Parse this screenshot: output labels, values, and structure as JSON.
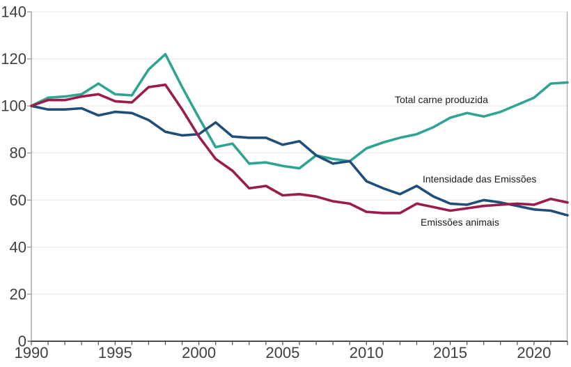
{
  "chart_data": {
    "type": "line",
    "title": "",
    "xlabel": "",
    "ylabel": "",
    "xlim": [
      1990,
      2022
    ],
    "ylim": [
      0,
      140
    ],
    "x": [
      1990,
      1991,
      1992,
      1993,
      1994,
      1995,
      1996,
      1997,
      1998,
      1999,
      2000,
      2001,
      2002,
      2003,
      2004,
      2005,
      2006,
      2007,
      2008,
      2009,
      2010,
      2011,
      2012,
      2013,
      2014,
      2015,
      2016,
      2017,
      2018,
      2019,
      2020,
      2021,
      2022
    ],
    "x_tick_labels": [
      "1990",
      "1995",
      "2000",
      "2005",
      "2010",
      "2015",
      "2020"
    ],
    "x_tick_years": [
      1990,
      1995,
      2000,
      2005,
      2010,
      2015,
      2020
    ],
    "y_ticks": [
      0,
      20,
      40,
      60,
      80,
      100,
      120,
      140
    ],
    "grid": "horizontal-light",
    "legend_position": "inline-annotations",
    "index_base": 100,
    "series": [
      {
        "name": "Total carne produzida",
        "color": "#2fa493",
        "values": [
          100,
          103.5,
          104,
          105,
          109.5,
          105,
          104.5,
          115.5,
          122,
          108,
          95,
          82.5,
          84,
          75.5,
          76,
          74.5,
          73.5,
          79,
          77.5,
          76.5,
          82,
          84.5,
          86.5,
          88,
          91,
          95,
          97,
          95.5,
          97.5,
          100.5,
          103.5,
          109.5,
          110
        ]
      },
      {
        "name": "Intensidade das Emissões",
        "color": "#1f4e79",
        "values": [
          100,
          98.5,
          98.5,
          99,
          96,
          97.5,
          97,
          94,
          89,
          87.5,
          88,
          93,
          87,
          86.5,
          86.5,
          83.5,
          85,
          79,
          75.5,
          76.5,
          68,
          65,
          62.5,
          66,
          61.5,
          58.5,
          58,
          60,
          59,
          57.5,
          56,
          55.5,
          53.5
        ]
      },
      {
        "name": "Emissões animais",
        "color": "#9b1b4d",
        "values": [
          100,
          102.5,
          102.5,
          104,
          105,
          102,
          101.5,
          108,
          109,
          98.5,
          87,
          77.5,
          72.5,
          65,
          66,
          62,
          62.5,
          61.5,
          59.5,
          58.5,
          55,
          54.5,
          54.5,
          58.5,
          57,
          55.5,
          56.5,
          57.5,
          58,
          58.5,
          58,
          60.5,
          59
        ]
      }
    ],
    "annotations": [
      {
        "text": "Total carne produzida"
      },
      {
        "text": "Intensidade das Emissões"
      },
      {
        "text": "Emissões animais"
      }
    ],
    "colors": {
      "grid": "#e9e9e9",
      "axis_bottom": "#4d4d4d",
      "axis_left": "#9a9a9a",
      "axis_right": "#ababab",
      "tick_text": "#404040",
      "annotation_text": "#1a1a1a"
    }
  }
}
